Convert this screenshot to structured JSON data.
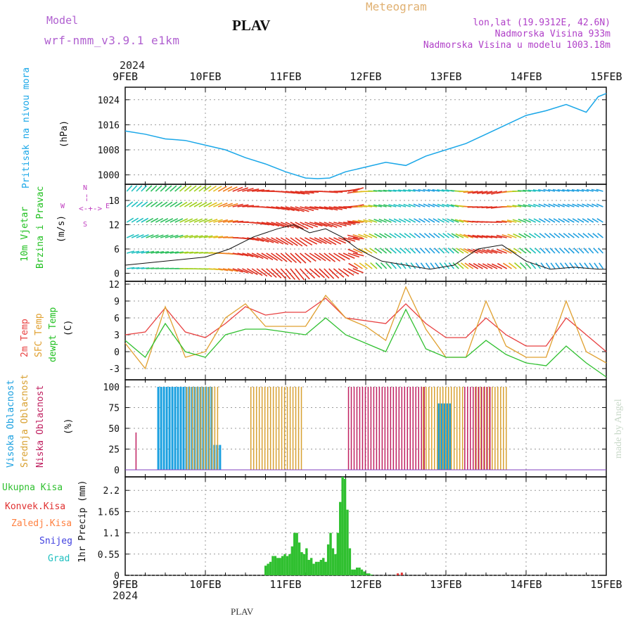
{
  "header": {
    "model_label": "Model",
    "model_name": "wrf-nmm_v3.9.1  e1km",
    "station": "PLAV",
    "meteogram": "Meteogram",
    "lonlat": "lon,lat (19.9312E, 42.6N)",
    "elevation": "Nadmorska Visina 933m",
    "model_elevation": "Nadmorska Visina u modelu 1003.18m",
    "year_top": "2024",
    "year_bottom": "2024",
    "footer_station": "PLAV",
    "credit": "made by Angel"
  },
  "time_axis": {
    "labels": [
      "9FEB",
      "10FEB",
      "11FEB",
      "12FEB",
      "13FEB",
      "14FEB",
      "15FEB"
    ]
  },
  "colors": {
    "pressure": "#1aa7e8",
    "temp2m": "#e84040",
    "sfc_temp": "#e0a030",
    "dewpt": "#30c030",
    "high_cloud": "#1aa0e0",
    "mid_cloud": "#d8a030",
    "low_cloud": "#c02060",
    "total_precip": "#30c030",
    "convective": "#e03030",
    "frozen": "#ff8040",
    "snow": "#4040e0",
    "graupel": "#20c0c0",
    "wind_axis": "#c040c0"
  },
  "chart_data": [
    {
      "type": "line",
      "panel": "pressure",
      "ylabel_main": "Pritisak na nivou mora",
      "ylabel_unit": "(hPa)",
      "yticks": [
        "1000",
        "1008",
        "1016",
        "1024"
      ],
      "ylim": [
        997,
        1028
      ],
      "x_days": [
        0,
        0.25,
        0.5,
        0.75,
        1,
        1.25,
        1.5,
        1.75,
        2,
        2.25,
        2.4,
        2.55,
        2.75,
        3,
        3.25,
        3.5,
        3.75,
        4,
        4.25,
        4.5,
        4.75,
        5,
        5.25,
        5.5,
        5.75,
        5.9,
        6
      ],
      "values": [
        1014,
        1013,
        1011.5,
        1011,
        1009.5,
        1008,
        1005.5,
        1003.5,
        1001,
        999,
        998.8,
        999,
        1001,
        1002.5,
        1004,
        1003,
        1006,
        1008,
        1010,
        1013,
        1016,
        1019,
        1020.5,
        1022.5,
        1020,
        1025,
        1026
      ]
    },
    {
      "type": "line",
      "panel": "wind",
      "ylabel_main": "10m Vjetar",
      "ylabel_sub": "Brzina i Pravac",
      "ylabel_unit": "(m/s)",
      "yticks": [
        "0",
        "6",
        "12",
        "18"
      ],
      "ylim": [
        -2,
        22
      ],
      "direction_legend": [
        "W",
        "E",
        "N",
        "S"
      ],
      "x_days": [
        0,
        0.5,
        1,
        1.3,
        1.6,
        1.9,
        2.1,
        2.3,
        2.5,
        2.7,
        2.9,
        3.2,
        3.5,
        3.8,
        4.1,
        4.4,
        4.7,
        5,
        5.3,
        5.6,
        5.9,
        6
      ],
      "speed": [
        2,
        3,
        4,
        6,
        9,
        11,
        12,
        10,
        11,
        9,
        6,
        3,
        2,
        1,
        2,
        6,
        7,
        3,
        1,
        1.5,
        1,
        1
      ]
    },
    {
      "type": "line",
      "panel": "temperature",
      "ylabel_lines": [
        "2m Temp",
        "SFC Temp",
        "dewpt Temp"
      ],
      "ylabel_unit": "(C)",
      "yticks": [
        "-3",
        "0",
        "3",
        "6",
        "9",
        "12"
      ],
      "ylim": [
        -5,
        12.5
      ],
      "x_days": [
        0,
        0.25,
        0.5,
        0.75,
        1,
        1.25,
        1.5,
        1.75,
        2,
        2.25,
        2.5,
        2.75,
        3,
        3.25,
        3.5,
        3.75,
        4,
        4.25,
        4.5,
        4.75,
        5,
        5.25,
        5.5,
        5.75,
        6
      ],
      "series": [
        {
          "name": "2m Temp",
          "values": [
            3,
            3.5,
            7.8,
            3.5,
            2.5,
            5,
            8,
            6.5,
            7,
            7,
            9.5,
            6,
            5.5,
            5,
            8.5,
            5,
            2.5,
            2.5,
            6,
            3,
            1,
            1,
            6,
            3,
            0
          ]
        },
        {
          "name": "SFC Temp",
          "values": [
            1.5,
            -3,
            8,
            -1,
            0,
            6,
            8.5,
            4.5,
            4.5,
            4.5,
            10,
            6,
            4.5,
            2,
            11.5,
            4,
            -1,
            -1,
            9,
            1,
            -1,
            -1,
            9,
            0,
            -2
          ]
        },
        {
          "name": "dewpt Temp",
          "values": [
            2,
            -1,
            5,
            0,
            -1,
            3,
            4,
            4,
            3.5,
            3,
            6,
            3,
            1.5,
            0,
            7.5,
            0.5,
            -1,
            -1,
            2,
            -0.5,
            -2,
            -2.5,
            1,
            -2,
            -4.5
          ]
        }
      ]
    },
    {
      "type": "bar",
      "panel": "clouds",
      "ylabel_lines": [
        "Visoka Oblacnost",
        "Srednja Oblacnost",
        "Niska Oblacnost"
      ],
      "ylabel_unit": "(%)",
      "yticks": [
        "0",
        "25",
        "50",
        "75",
        "100"
      ],
      "ylim": [
        0,
        100
      ],
      "series": [
        {
          "name": "Visoka Oblacnost",
          "segments": [
            [
              0.4,
              1.1,
              100
            ],
            [
              1.1,
              1.2,
              30
            ],
            [
              3.9,
              4.05,
              80
            ]
          ]
        },
        {
          "name": "Srednja Oblacnost",
          "segments": [
            [
              0.75,
              1.15,
              100
            ],
            [
              1.55,
              2.2,
              100
            ],
            [
              3.7,
              4.2,
              100
            ],
            [
              4.35,
              4.75,
              100
            ]
          ]
        },
        {
          "name": "Niska Oblacnost",
          "segments": [
            [
              2.75,
              3.7,
              100
            ],
            [
              4.2,
              4.55,
              100
            ],
            [
              0.1,
              0.12,
              45
            ]
          ]
        }
      ]
    },
    {
      "type": "bar",
      "panel": "precip",
      "ylabel_lines": [
        "Ukupna Kisa",
        "Konvek.Kisa",
        "Zaledj.Kisa",
        "Snijeg",
        "Grad"
      ],
      "ylabel_unit": "1hr Precip (mm)",
      "yticks": [
        "0",
        "0.55",
        "1.1",
        "1.65",
        "2.2"
      ],
      "ylim": [
        0,
        2.55
      ],
      "x_days": [
        1.75,
        1.78,
        1.81,
        1.84,
        1.87,
        1.9,
        1.93,
        1.96,
        1.99,
        2.02,
        2.05,
        2.08,
        2.11,
        2.14,
        2.17,
        2.2,
        2.23,
        2.26,
        2.29,
        2.32,
        2.35,
        2.38,
        2.41,
        2.44,
        2.47,
        2.5,
        2.53,
        2.56,
        2.59,
        2.62,
        2.65,
        2.68,
        2.71,
        2.74,
        2.77,
        2.8,
        2.83,
        2.86,
        2.89,
        2.92,
        2.95,
        2.98,
        3.01,
        3.04,
        3.07
      ],
      "values": [
        0.25,
        0.3,
        0.35,
        0.5,
        0.5,
        0.45,
        0.45,
        0.5,
        0.55,
        0.5,
        0.55,
        0.75,
        1.1,
        1.1,
        0.85,
        0.6,
        0.55,
        0.7,
        0.4,
        0.45,
        0.3,
        0.35,
        0.35,
        0.4,
        0.45,
        0.35,
        0.8,
        1.1,
        0.7,
        0.55,
        1.1,
        1.9,
        2.55,
        2.5,
        1.7,
        0.7,
        0.15,
        0.15,
        0.2,
        0.2,
        0.15,
        0.1,
        0.05,
        0.05,
        0.02
      ],
      "convective_x_days": [
        3.4,
        3.45
      ],
      "convective_values": [
        0.05,
        0.07
      ]
    }
  ]
}
